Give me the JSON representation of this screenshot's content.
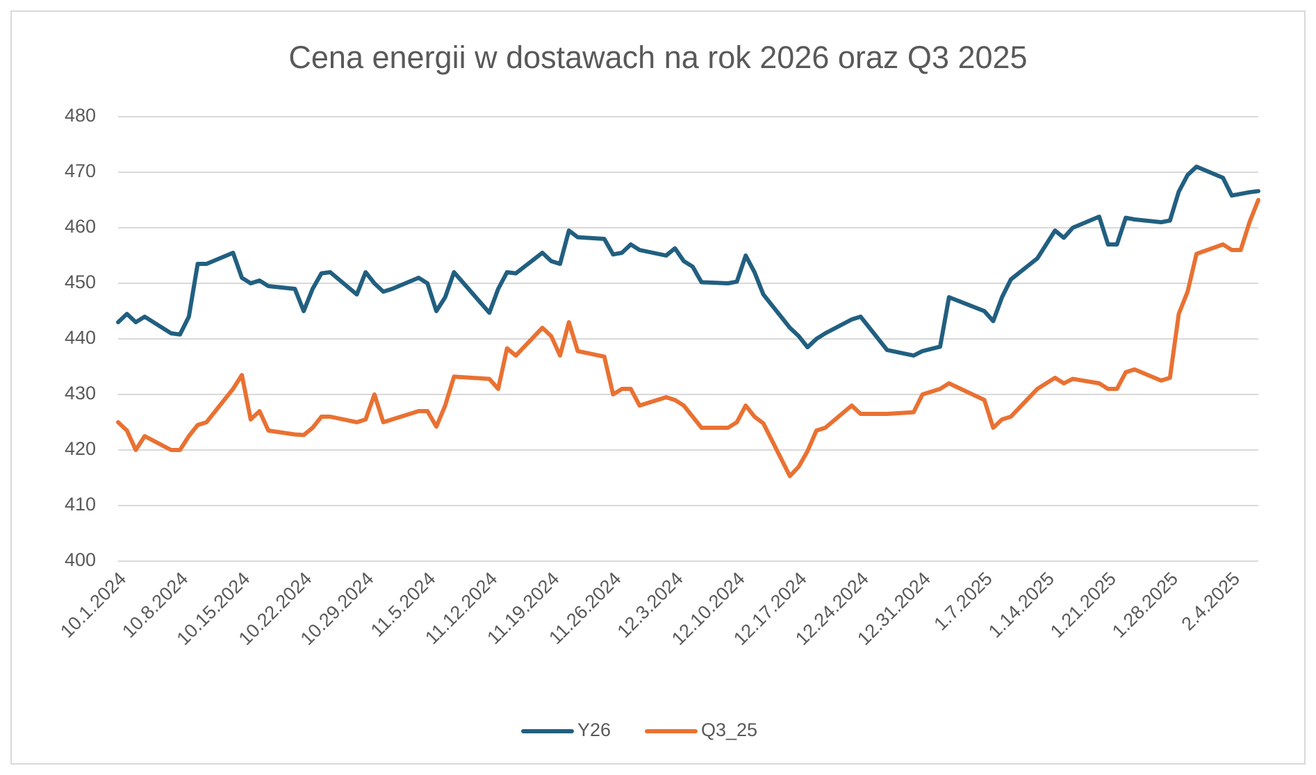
{
  "chart_data": {
    "type": "line",
    "title": "Cena energii w dostawach na rok 2026 oraz Q3 2025",
    "x": [
      "2024-10-01",
      "2024-10-02",
      "2024-10-03",
      "2024-10-04",
      "2024-10-07",
      "2024-10-08",
      "2024-10-09",
      "2024-10-10",
      "2024-10-11",
      "2024-10-14",
      "2024-10-15",
      "2024-10-16",
      "2024-10-17",
      "2024-10-18",
      "2024-10-21",
      "2024-10-22",
      "2024-10-23",
      "2024-10-24",
      "2024-10-25",
      "2024-10-28",
      "2024-10-29",
      "2024-10-30",
      "2024-10-31",
      "2024-11-01",
      "2024-11-04",
      "2024-11-05",
      "2024-11-06",
      "2024-11-07",
      "2024-11-08",
      "2024-11-12",
      "2024-11-13",
      "2024-11-14",
      "2024-11-15",
      "2024-11-18",
      "2024-11-19",
      "2024-11-20",
      "2024-11-21",
      "2024-11-22",
      "2024-11-25",
      "2024-11-26",
      "2024-11-27",
      "2024-11-28",
      "2024-11-29",
      "2024-12-02",
      "2024-12-03",
      "2024-12-04",
      "2024-12-05",
      "2024-12-06",
      "2024-12-09",
      "2024-12-10",
      "2024-12-11",
      "2024-12-12",
      "2024-12-13",
      "2024-12-16",
      "2024-12-17",
      "2024-12-18",
      "2024-12-19",
      "2024-12-20",
      "2024-12-23",
      "2024-12-24",
      "2024-12-27",
      "2024-12-30",
      "2024-12-31",
      "2025-01-02",
      "2025-01-03",
      "2025-01-07",
      "2025-01-08",
      "2025-01-09",
      "2025-01-10",
      "2025-01-13",
      "2025-01-14",
      "2025-01-15",
      "2025-01-16",
      "2025-01-17",
      "2025-01-20",
      "2025-01-21",
      "2025-01-22",
      "2025-01-23",
      "2025-01-24",
      "2025-01-27",
      "2025-01-28",
      "2025-01-29",
      "2025-01-30",
      "2025-01-31",
      "2025-02-03",
      "2025-02-04",
      "2025-02-05",
      "2025-02-06",
      "2025-02-07"
    ],
    "series": [
      {
        "name": "Y26",
        "color": "#215f80",
        "values": [
          443,
          444.5,
          443,
          444,
          441,
          440.8,
          444,
          453.5,
          453.5,
          455.5,
          451,
          450,
          450.5,
          449.5,
          449,
          445,
          449,
          451.8,
          452,
          448,
          452,
          450,
          448.5,
          449,
          451,
          450,
          445,
          447.5,
          452,
          444.7,
          449,
          452,
          451.8,
          455.5,
          454,
          453.5,
          459.5,
          458.3,
          458,
          455.2,
          455.5,
          457,
          456,
          455,
          456.3,
          454,
          453,
          450.2,
          450,
          450.3,
          455,
          452,
          448,
          442,
          440.5,
          438.5,
          440,
          441,
          443.5,
          444,
          438,
          437,
          437.8,
          438.6,
          447.5,
          445,
          443.2,
          447.5,
          450.7,
          454.5,
          457,
          459.5,
          458.2,
          460,
          462,
          457,
          457,
          461.8,
          461.5,
          461,
          461.3,
          466.5,
          469.5,
          471,
          469,
          465.8,
          466.1,
          466.4,
          466.6
        ]
      },
      {
        "name": "Q3_25",
        "color": "#e97132",
        "values": [
          425,
          423.5,
          420,
          422.5,
          420,
          420,
          422.5,
          424.5,
          425,
          431,
          433.5,
          425.5,
          427,
          423.5,
          422.8,
          422.7,
          424,
          426,
          426,
          425,
          425.5,
          430,
          425,
          425.5,
          427,
          427,
          424.2,
          428,
          433.2,
          432.8,
          431,
          438.3,
          437,
          442,
          440.5,
          437,
          443,
          437.8,
          436.8,
          430,
          431,
          431,
          428,
          429.5,
          429,
          428,
          426,
          424,
          424,
          425,
          428,
          426,
          424.8,
          415.3,
          417,
          419.8,
          423.5,
          424,
          428,
          426.5,
          426.5,
          426.8,
          430,
          431,
          432,
          429,
          424,
          425.5,
          426,
          431,
          432,
          433,
          432,
          432.8,
          432,
          431,
          431,
          434,
          434.5,
          432.5,
          433,
          444.5,
          448.5,
          455.3,
          457,
          456,
          456,
          461,
          465
        ]
      }
    ],
    "xlim": [
      "2024-10-01",
      "2025-02-07"
    ],
    "xticks": [
      {
        "value": "2024-10-01",
        "label": "10.1.2024"
      },
      {
        "value": "2024-10-08",
        "label": "10.8.2024"
      },
      {
        "value": "2024-10-15",
        "label": "10.15.2024"
      },
      {
        "value": "2024-10-22",
        "label": "10.22.2024"
      },
      {
        "value": "2024-10-29",
        "label": "10.29.2024"
      },
      {
        "value": "2024-11-05",
        "label": "11.5.2024"
      },
      {
        "value": "2024-11-12",
        "label": "11.12.2024"
      },
      {
        "value": "2024-11-19",
        "label": "11.19.2024"
      },
      {
        "value": "2024-11-26",
        "label": "11.26.2024"
      },
      {
        "value": "2024-12-03",
        "label": "12.3.2024"
      },
      {
        "value": "2024-12-10",
        "label": "12.10.2024"
      },
      {
        "value": "2024-12-17",
        "label": "12.17.2024"
      },
      {
        "value": "2024-12-24",
        "label": "12.24.2024"
      },
      {
        "value": "2024-12-31",
        "label": "12.31.2024"
      },
      {
        "value": "2025-01-07",
        "label": "1.7.2025"
      },
      {
        "value": "2025-01-14",
        "label": "1.14.2025"
      },
      {
        "value": "2025-01-21",
        "label": "1.21.2025"
      },
      {
        "value": "2025-01-28",
        "label": "1.28.2025"
      },
      {
        "value": "2025-02-04",
        "label": "2.4.2025"
      }
    ],
    "ylim": [
      400,
      480
    ],
    "yticks": [
      400,
      410,
      420,
      430,
      440,
      450,
      460,
      470,
      480
    ],
    "grid": true,
    "legend": "bottom"
  }
}
